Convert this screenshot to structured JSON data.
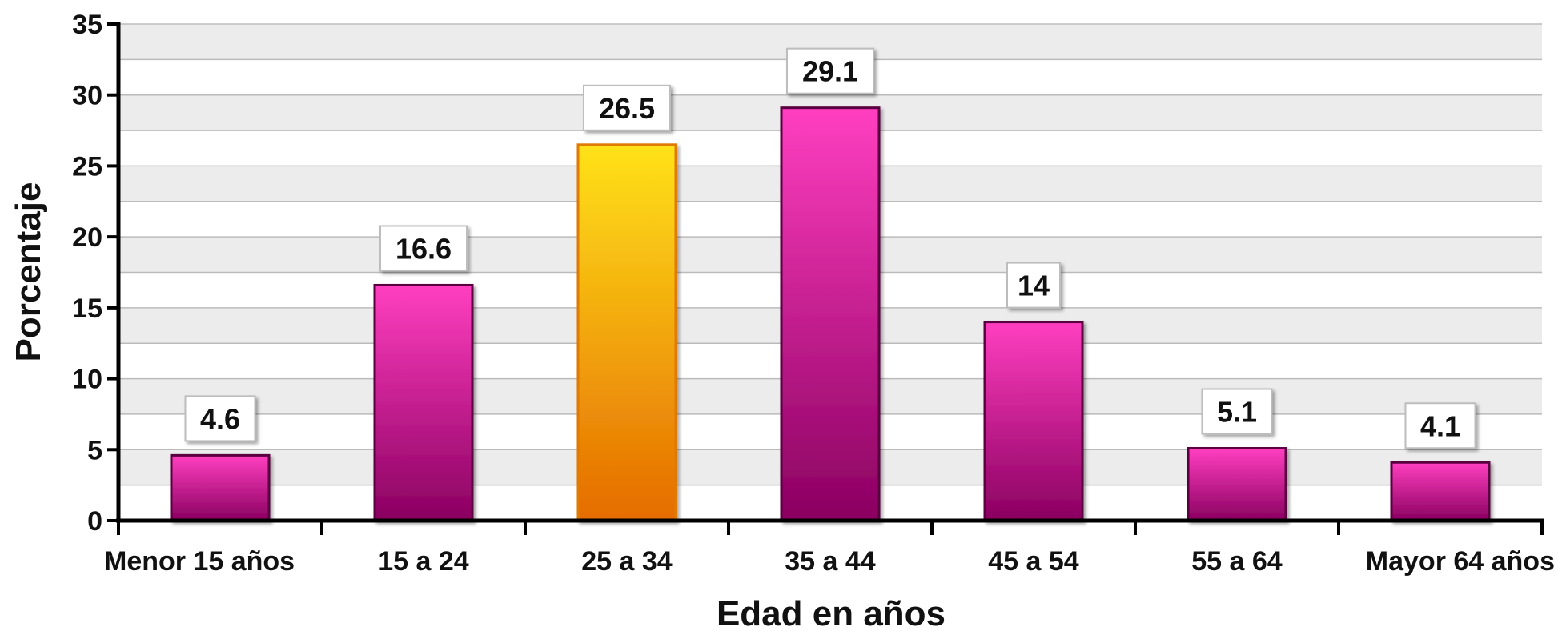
{
  "chart_data": {
    "type": "bar",
    "title": "",
    "xlabel": "Edad en años",
    "ylabel": "Porcentaje",
    "ylim": [
      0,
      35
    ],
    "yticks": [
      0,
      5,
      10,
      15,
      20,
      25,
      30,
      35
    ],
    "grid": true,
    "categories": [
      "Menor 15 años",
      "15 a 24",
      "25 a 34",
      "35 a 44",
      "45 a 54",
      "55 a 64",
      "Mayor 64 años"
    ],
    "values": [
      4.6,
      16.6,
      26.5,
      29.1,
      14,
      5.1,
      4.1
    ],
    "value_labels": [
      "4.6",
      "16.6",
      "26.5",
      "29.1",
      "14",
      "5.1",
      "4.1"
    ],
    "highlight_index": 2,
    "colors": {
      "bar_top": "#ff3fc0",
      "bar_bottom": "#8a0060",
      "bar_border": "#5a0040",
      "highlight_top": "#ffe21a",
      "highlight_bottom": "#e56c00",
      "highlight_border": "#e07a00",
      "band": "#ececec",
      "grid": "#bbbbbb",
      "axis": "#000000"
    }
  }
}
